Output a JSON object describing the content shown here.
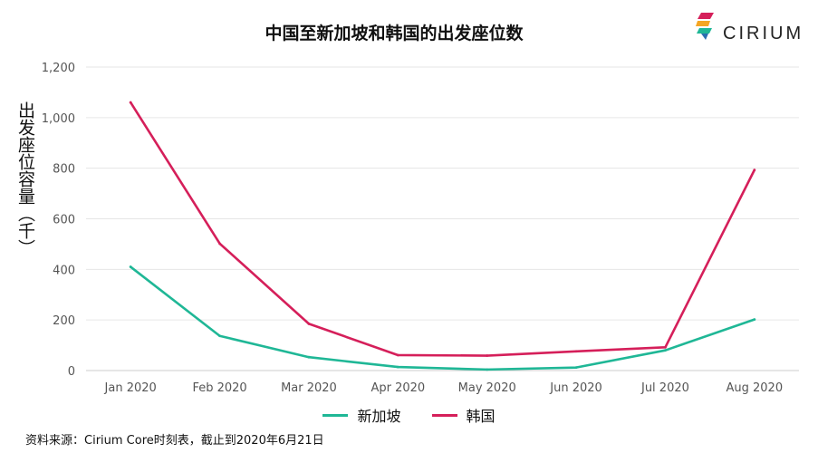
{
  "title": "中国至新加坡和韩国的出发座位数",
  "logo": {
    "text": "CIRIUM"
  },
  "source": "资料来源：Cirium Core时刻表，截止到2020年6月21日",
  "chart_data": {
    "type": "line",
    "title": "中国至新加坡和韩国的出发座位数",
    "ylabel": "出发座位容量（千）",
    "xlabel": "",
    "categories": [
      "Jan 2020",
      "Feb 2020",
      "Mar 2020",
      "Apr 2020",
      "May 2020",
      "Jun 2020",
      "Jul 2020",
      "Aug 2020"
    ],
    "ylim": [
      0,
      1200
    ],
    "yticks": [
      0,
      200,
      400,
      600,
      800,
      1000,
      1200
    ],
    "ytick_labels": [
      "0",
      "200",
      "400",
      "600",
      "800",
      "1,000",
      "1,200"
    ],
    "grid": true,
    "legend": "bottom",
    "series": [
      {
        "name": "新加坡",
        "color": "#1fb796",
        "values": [
          410,
          137,
          53,
          14,
          4,
          12,
          80,
          202
        ]
      },
      {
        "name": "韩国",
        "color": "#d51f5a",
        "values": [
          1060,
          502,
          185,
          61,
          59,
          76,
          92,
          793
        ]
      }
    ]
  }
}
